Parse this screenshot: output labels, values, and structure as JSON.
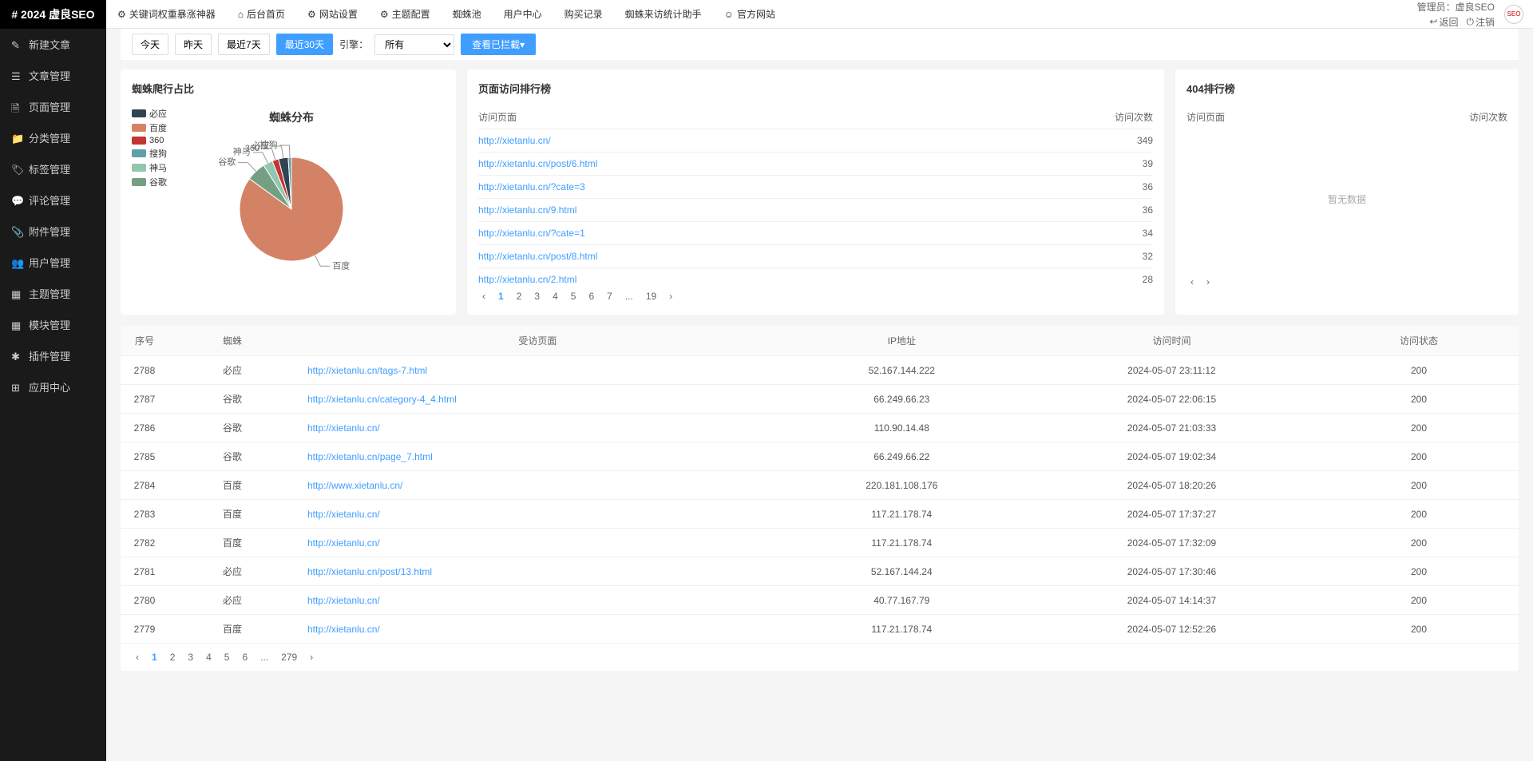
{
  "logo": "# 2024 虚良SEO",
  "topnav": [
    {
      "icon": "gear-icon",
      "label": "关键词权重暴涨神器"
    },
    {
      "icon": "home-icon",
      "label": "后台首页"
    },
    {
      "icon": "gear-icon",
      "label": "网站设置"
    },
    {
      "icon": "gear-icon",
      "label": "主题配置"
    },
    {
      "icon": "",
      "label": "蜘蛛池"
    },
    {
      "icon": "",
      "label": "用户中心"
    },
    {
      "icon": "",
      "label": "购买记录"
    },
    {
      "icon": "",
      "label": "蜘蛛来访统计助手"
    },
    {
      "icon": "globe-icon",
      "label": "官方网站"
    }
  ],
  "topright": {
    "admin_label": "管理员：虚良SEO",
    "back": "返回",
    "logout": "注销"
  },
  "sidebar": [
    {
      "label": "新建文章"
    },
    {
      "label": "文章管理"
    },
    {
      "label": "页面管理"
    },
    {
      "label": "分类管理"
    },
    {
      "label": "标签管理"
    },
    {
      "label": "评论管理"
    },
    {
      "label": "附件管理"
    },
    {
      "label": "用户管理"
    },
    {
      "label": "主题管理"
    },
    {
      "label": "模块管理"
    },
    {
      "label": "插件管理"
    },
    {
      "label": "应用中心"
    }
  ],
  "filter": {
    "today": "今天",
    "yesterday": "昨天",
    "last7": "最近7天",
    "last30": "最近30天",
    "engine_label": "引擎：",
    "engine_value": "所有",
    "export": "查看已拦截▾"
  },
  "pie_card": {
    "title": "蜘蛛爬行占比",
    "chart_title": "蜘蛛分布",
    "legend": [
      {
        "name": "必应",
        "color": "#2f4554"
      },
      {
        "name": "百度",
        "color": "#d48265"
      },
      {
        "name": "360",
        "color": "#c23531"
      },
      {
        "name": "搜狗",
        "color": "#61a0a8"
      },
      {
        "name": "神马",
        "color": "#91c7ae"
      },
      {
        "name": "谷歌",
        "color": "#749f83"
      }
    ],
    "slices": [
      {
        "name": "百度",
        "value": 85,
        "color": "#d48265"
      },
      {
        "name": "谷歌",
        "value": 6,
        "color": "#749f83"
      },
      {
        "name": "神马",
        "value": 3,
        "color": "#91c7ae"
      },
      {
        "name": "360",
        "value": 2,
        "color": "#c23531"
      },
      {
        "name": "必应",
        "value": 3,
        "color": "#2f4554"
      },
      {
        "name": "搜狗",
        "value": 1,
        "color": "#61a0a8"
      }
    ],
    "background": "#ffffff"
  },
  "rank_card": {
    "title": "页面访问排行榜",
    "col1": "访问页面",
    "col2": "访问次数",
    "rows": [
      {
        "url": "http://xietanlu.cn/",
        "count": 349
      },
      {
        "url": "http://xietanlu.cn/post/6.html",
        "count": 39
      },
      {
        "url": "http://xietanlu.cn/?cate=3",
        "count": 36
      },
      {
        "url": "http://xietanlu.cn/9.html",
        "count": 36
      },
      {
        "url": "http://xietanlu.cn/?cate=1",
        "count": 34
      },
      {
        "url": "http://xietanlu.cn/post/8.html",
        "count": 32
      },
      {
        "url": "http://xietanlu.cn/2.html",
        "count": 28
      }
    ],
    "pages": [
      "1",
      "2",
      "3",
      "4",
      "5",
      "6",
      "7",
      "...",
      "19"
    ]
  },
  "rank404_card": {
    "title": "404排行榜",
    "col1": "访问页面",
    "col2": "访问次数",
    "no_data": "暂无数据"
  },
  "table": {
    "headers": [
      "序号",
      "蜘蛛",
      "受访页面",
      "IP地址",
      "访问时间",
      "访问状态"
    ],
    "rows": [
      [
        "2788",
        "必应",
        "http://xietanlu.cn/tags-7.html",
        "52.167.144.222",
        "2024-05-07 23:11:12",
        "200"
      ],
      [
        "2787",
        "谷歌",
        "http://xietanlu.cn/category-4_4.html",
        "66.249.66.23",
        "2024-05-07 22:06:15",
        "200"
      ],
      [
        "2786",
        "谷歌",
        "http://xietanlu.cn/",
        "110.90.14.48",
        "2024-05-07 21:03:33",
        "200"
      ],
      [
        "2785",
        "谷歌",
        "http://xietanlu.cn/page_7.html",
        "66.249.66.22",
        "2024-05-07 19:02:34",
        "200"
      ],
      [
        "2784",
        "百度",
        "http://www.xietanlu.cn/",
        "220.181.108.176",
        "2024-05-07 18:20:26",
        "200"
      ],
      [
        "2783",
        "百度",
        "http://xietanlu.cn/",
        "117.21.178.74",
        "2024-05-07 17:37:27",
        "200"
      ],
      [
        "2782",
        "百度",
        "http://xietanlu.cn/",
        "117.21.178.74",
        "2024-05-07 17:32:09",
        "200"
      ],
      [
        "2781",
        "必应",
        "http://xietanlu.cn/post/13.html",
        "52.167.144.24",
        "2024-05-07 17:30:46",
        "200"
      ],
      [
        "2780",
        "必应",
        "http://xietanlu.cn/",
        "40.77.167.79",
        "2024-05-07 14:14:37",
        "200"
      ],
      [
        "2779",
        "百度",
        "http://xietanlu.cn/",
        "117.21.178.74",
        "2024-05-07 12:52:26",
        "200"
      ]
    ],
    "pages": [
      "1",
      "2",
      "3",
      "4",
      "5",
      "6",
      "...",
      "279"
    ]
  }
}
